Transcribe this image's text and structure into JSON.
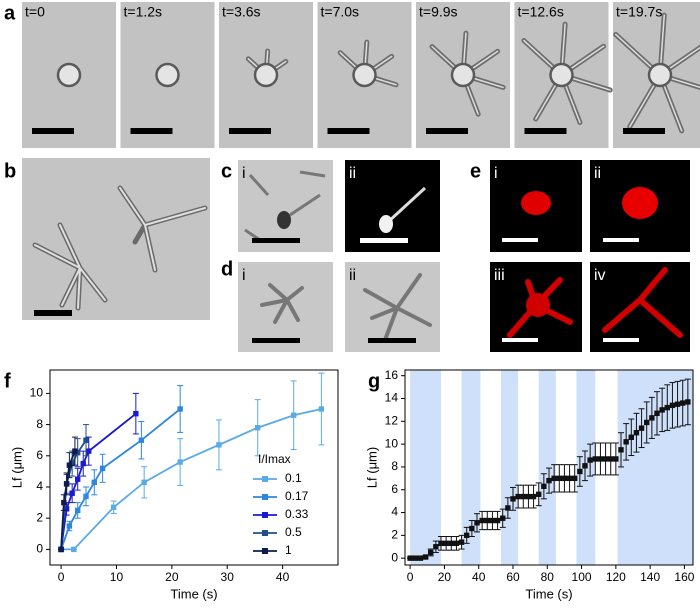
{
  "panels": [
    {
      "label": "a",
      "frames": [
        "t=0",
        "t=1.2s",
        "t=3.6s",
        "t=7.0s",
        "t=9.9s",
        "t=12.6s",
        "t=19.7s"
      ]
    },
    {
      "label": "b"
    },
    {
      "label": "c",
      "sub": [
        "i",
        "ii"
      ]
    },
    {
      "label": "d",
      "sub": [
        "i",
        "ii"
      ]
    },
    {
      "label": "e",
      "sub": [
        "i",
        "ii",
        "iii",
        "iv"
      ]
    },
    {
      "label": "f"
    },
    {
      "label": "g"
    }
  ],
  "chart_data": [
    {
      "type": "scatter",
      "x_label": "Time (s)",
      "y_label": "Lf (μm)",
      "xlim": [
        -2,
        50
      ],
      "xticks": [
        0,
        10,
        20,
        30,
        40
      ],
      "ylim": [
        -1,
        11.5
      ],
      "yticks": [
        0,
        2,
        4,
        6,
        8,
        10
      ],
      "legend_title": "I/Imax",
      "legend": "lower right",
      "series": [
        {
          "name": "0.1",
          "color": "#5aaae6",
          "x": [
            0,
            2.3,
            9.5,
            15,
            21.5,
            28.5,
            35.5,
            42,
            47
          ],
          "values": [
            0,
            0,
            2.7,
            4.3,
            5.6,
            6.7,
            7.8,
            8.6,
            9.0
          ],
          "errors": [
            0,
            0,
            0.4,
            1.0,
            1.5,
            1.6,
            1.8,
            2.2,
            2.3
          ]
        },
        {
          "name": "0.17",
          "color": "#2e86de",
          "x": [
            0,
            1.5,
            3,
            4.5,
            6,
            7.5,
            14.5,
            21.5
          ],
          "values": [
            0,
            1.5,
            2.5,
            3.4,
            4.3,
            5.2,
            7.0,
            9.0
          ],
          "errors": [
            0,
            0.3,
            0.5,
            0.6,
            0.8,
            0.9,
            1.2,
            1.5
          ]
        },
        {
          "name": "0.33",
          "color": "#1a1ad0",
          "x": [
            0,
            1,
            2,
            3,
            4,
            5,
            13.5
          ],
          "values": [
            0,
            2.6,
            3.6,
            4.5,
            5.5,
            6.3,
            8.7
          ],
          "errors": [
            0,
            0.4,
            0.6,
            0.7,
            0.8,
            0.9,
            1.3
          ]
        },
        {
          "name": "0.5",
          "color": "#1f4e8c",
          "x": [
            0,
            1,
            2,
            3,
            4.5
          ],
          "values": [
            0,
            4.2,
            5.5,
            6.2,
            7.0
          ],
          "errors": [
            0,
            0.6,
            0.8,
            0.9,
            1.0
          ]
        },
        {
          "name": "1",
          "color": "#0d1b4d",
          "x": [
            0,
            0.5,
            1,
            1.5,
            2.5
          ],
          "values": [
            0,
            3.0,
            4.2,
            5.4,
            6.3
          ],
          "errors": [
            0,
            0.5,
            0.7,
            0.8,
            0.9
          ]
        }
      ]
    },
    {
      "type": "scatter",
      "x_label": "Time (s)",
      "y_label": "Lf (μm)",
      "color": "#111111",
      "xlim": [
        -3,
        165
      ],
      "xticks": [
        0,
        20,
        40,
        60,
        80,
        100,
        120,
        140,
        160
      ],
      "ylim": [
        -0.6,
        16.5
      ],
      "yticks": [
        0,
        2,
        4,
        6,
        8,
        10,
        12,
        14,
        16
      ],
      "shaded_regions": [
        [
          0,
          18
        ],
        [
          30,
          41
        ],
        [
          53,
          63
        ],
        [
          75,
          85
        ],
        [
          97,
          108
        ],
        [
          121,
          165
        ]
      ],
      "shade_color": "#cfe0fa",
      "x": [
        0,
        3,
        6,
        9,
        12,
        15,
        18,
        21,
        24,
        27,
        30,
        33,
        36,
        39,
        42,
        45,
        48,
        51,
        54,
        57,
        60,
        63,
        66,
        69,
        72,
        75,
        78,
        81,
        84,
        87,
        90,
        93,
        96,
        99,
        102,
        105,
        108,
        111,
        114,
        117,
        120,
        123,
        126,
        129,
        132,
        135,
        138,
        141,
        144,
        147,
        150,
        153,
        156,
        159,
        162
      ],
      "values": [
        0,
        0,
        0,
        0.1,
        0.5,
        1.0,
        1.3,
        1.3,
        1.3,
        1.3,
        1.4,
        2.0,
        2.6,
        3.1,
        3.3,
        3.3,
        3.3,
        3.3,
        3.5,
        4.4,
        5.2,
        5.4,
        5.4,
        5.4,
        5.4,
        5.6,
        6.3,
        6.8,
        7.0,
        7.0,
        7.0,
        7.0,
        7.0,
        7.6,
        8.1,
        8.6,
        8.7,
        8.7,
        8.7,
        8.7,
        8.7,
        9.5,
        10.2,
        10.6,
        11.0,
        11.4,
        11.9,
        12.3,
        12.7,
        13.0,
        13.2,
        13.4,
        13.5,
        13.6,
        13.7
      ],
      "errors": [
        0,
        0,
        0,
        0.1,
        0.3,
        0.5,
        0.6,
        0.6,
        0.6,
        0.6,
        0.6,
        0.7,
        0.7,
        0.8,
        0.8,
        0.8,
        0.8,
        0.8,
        0.8,
        0.9,
        1.0,
        1.0,
        1.0,
        1.0,
        1.0,
        1.0,
        1.1,
        1.1,
        1.2,
        1.2,
        1.2,
        1.2,
        1.2,
        1.3,
        1.3,
        1.4,
        1.4,
        1.4,
        1.4,
        1.4,
        1.4,
        1.5,
        1.6,
        1.6,
        1.7,
        1.7,
        1.8,
        1.8,
        1.9,
        1.9,
        2.0,
        2.0,
        2.0,
        2.0,
        2.0
      ]
    }
  ]
}
